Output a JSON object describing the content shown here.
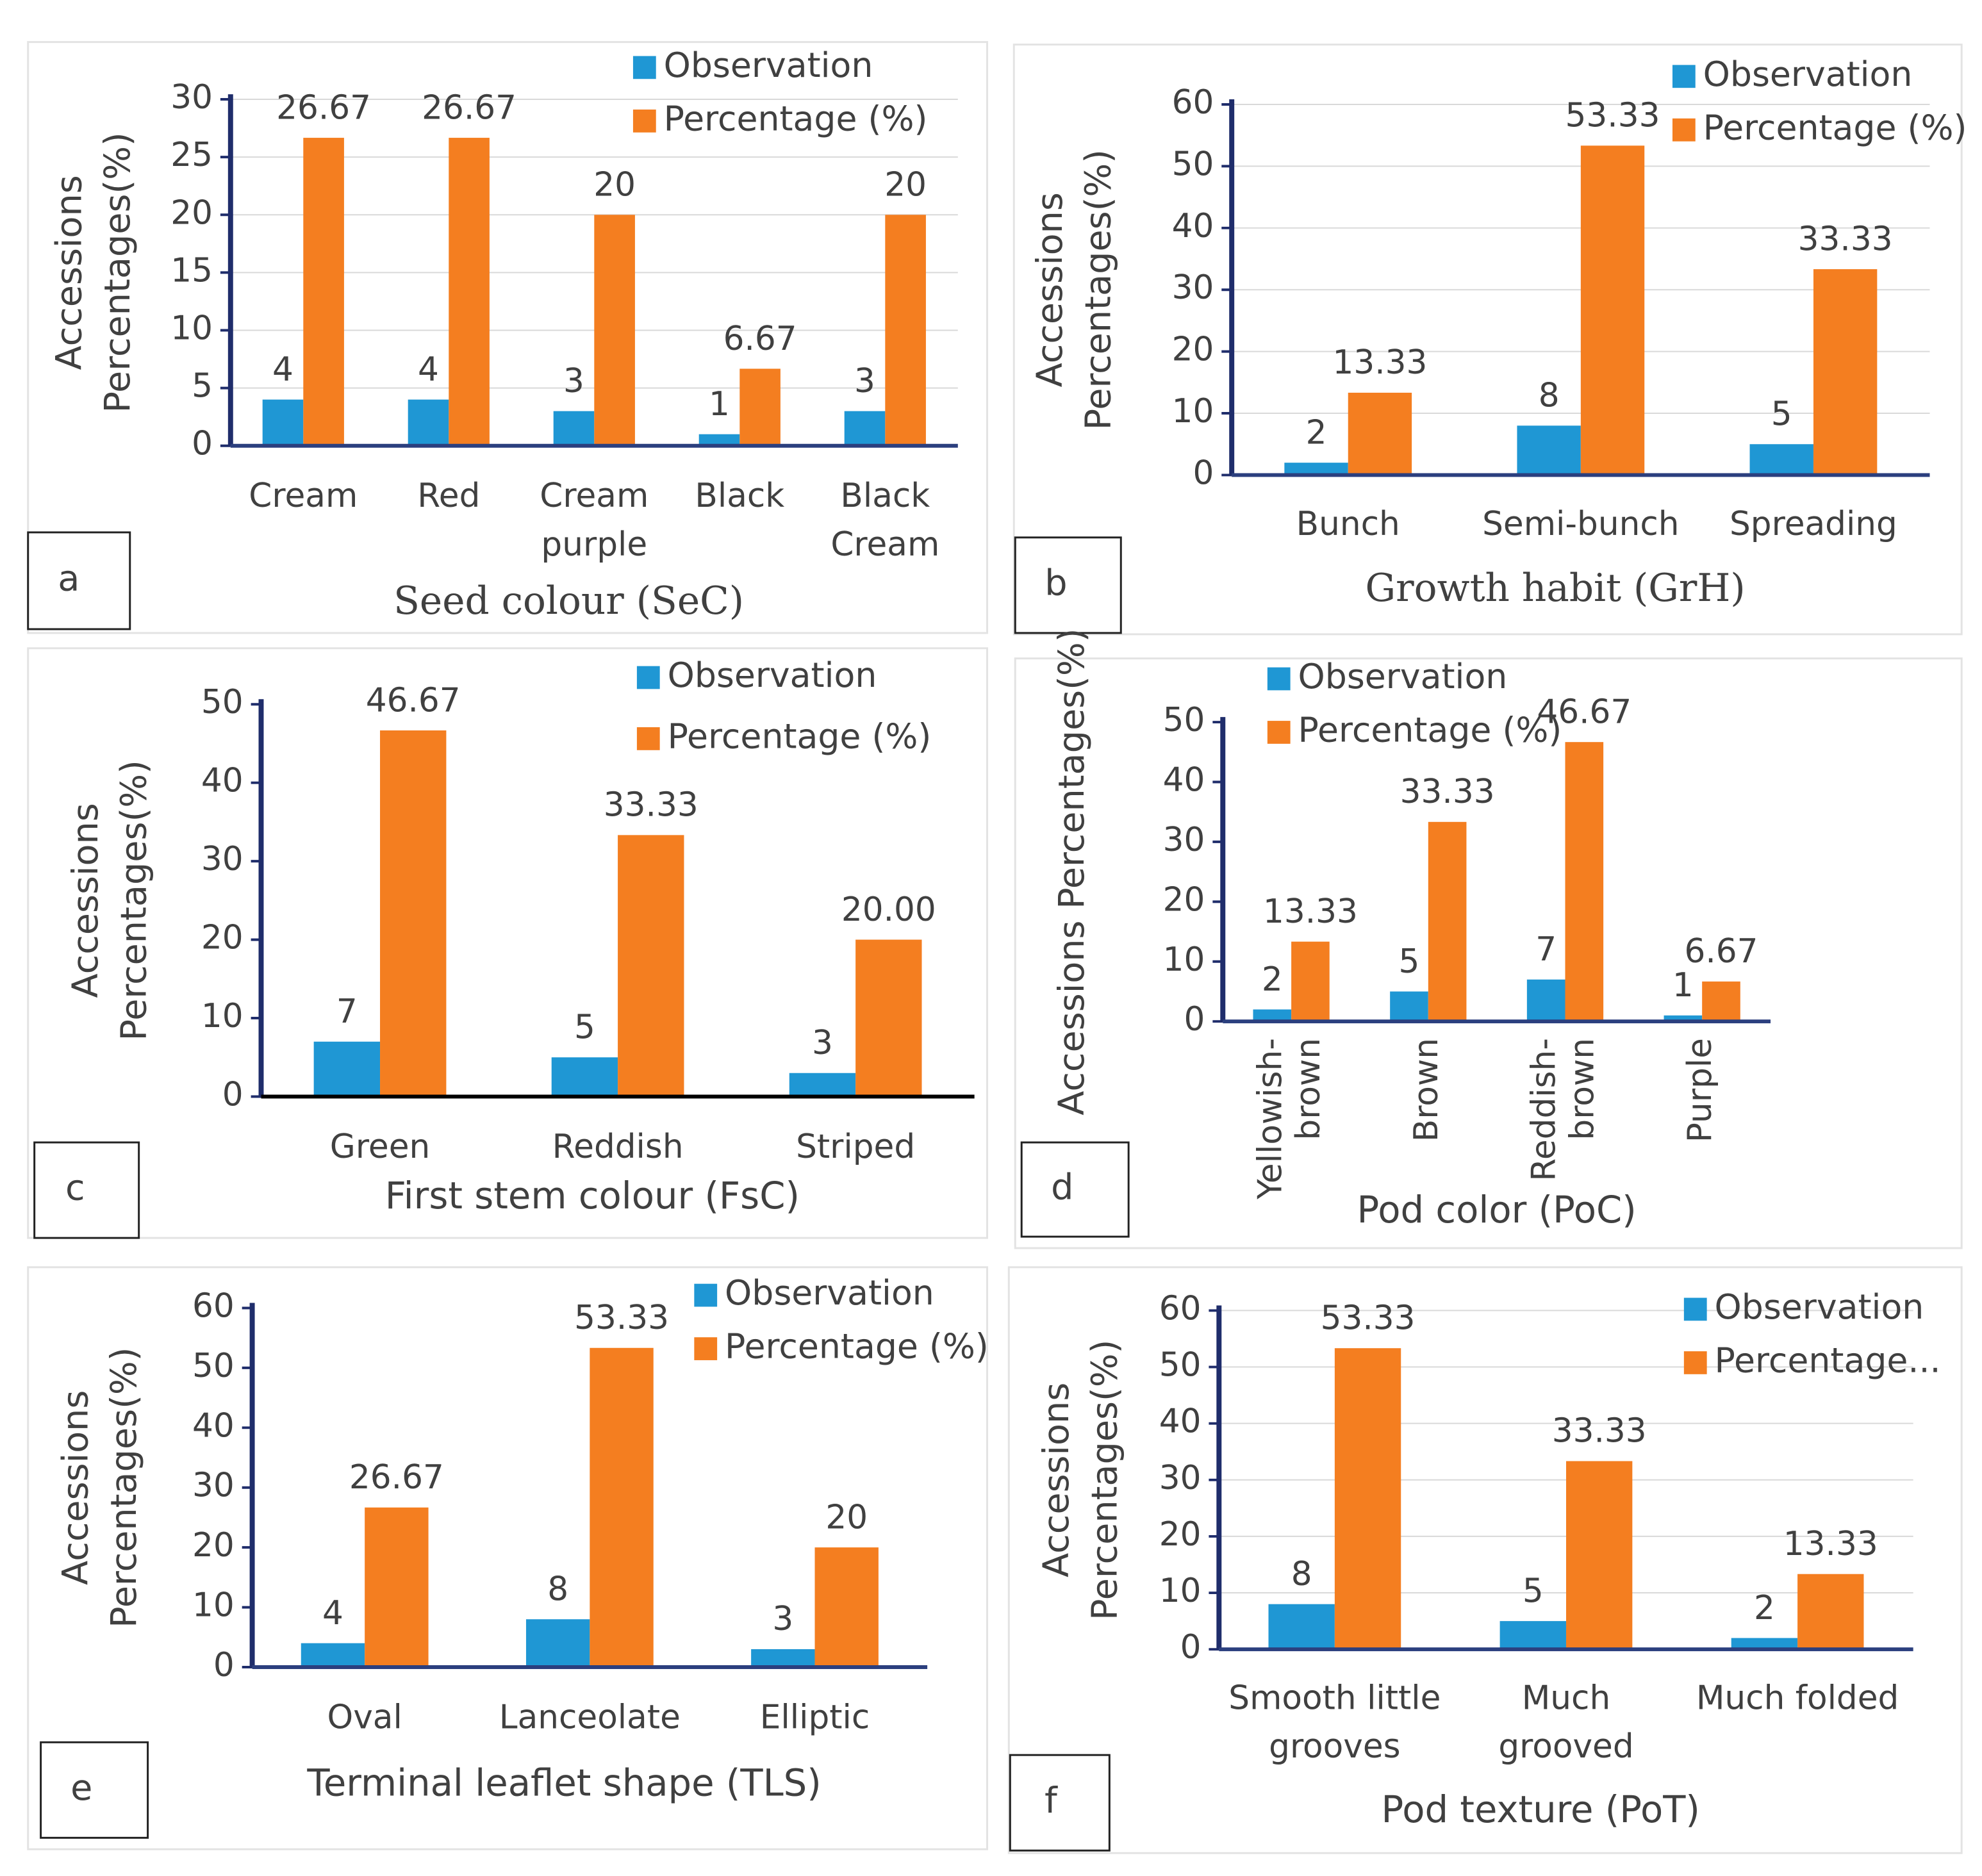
{
  "chart_data": [
    {
      "type": "bar",
      "label": "a",
      "x_title": "Seed colour (SeC)",
      "y_title": "Accessions\nPercentages(%)",
      "categories": [
        "Cream",
        "Red",
        "Cream\npurple",
        "Black",
        "Black\nCream"
      ],
      "series": [
        {
          "name": "Observation",
          "color": "#1f97d4",
          "values": [
            4,
            4,
            3,
            1,
            3
          ]
        },
        {
          "name": "Percentage (%)",
          "color": "#f47e20",
          "values": [
            26.67,
            26.67,
            20,
            6.67,
            20
          ]
        }
      ],
      "ylim": [
        0,
        30
      ],
      "yticks": [
        0,
        5,
        10,
        15,
        20,
        25,
        30
      ],
      "grid": true
    },
    {
      "type": "bar",
      "label": "b",
      "x_title": "Growth habit (GrH)",
      "y_title": "Accessions\nPercentages(%)",
      "categories": [
        "Bunch",
        "Semi-bunch",
        "Spreading"
      ],
      "series": [
        {
          "name": "Observation",
          "color": "#1f97d4",
          "values": [
            2,
            8,
            5
          ]
        },
        {
          "name": "Percentage (%)",
          "color": "#f47e20",
          "values": [
            13.33,
            53.33,
            33.33
          ]
        }
      ],
      "ylim": [
        0,
        60
      ],
      "yticks": [
        0,
        10,
        20,
        30,
        40,
        50,
        60
      ],
      "grid": true
    },
    {
      "type": "bar",
      "label": "c",
      "x_title": "First stem colour (FsC)",
      "y_title": "Accessions\nPercentages(%)",
      "categories": [
        "Green",
        "Reddish",
        "Striped"
      ],
      "series": [
        {
          "name": "Observation",
          "color": "#1f97d4",
          "values": [
            7,
            5,
            3
          ]
        },
        {
          "name": "Percentage (%)",
          "color": "#f47e20",
          "values": [
            46.67,
            33.33,
            20
          ],
          "value_labels": [
            "46.67",
            "33.33",
            "20.00"
          ]
        }
      ],
      "ylim": [
        0,
        50
      ],
      "yticks": [
        0,
        10,
        20,
        30,
        40,
        50
      ],
      "grid": false
    },
    {
      "type": "bar",
      "label": "d",
      "x_title": "Pod color (PoC)",
      "y_title": "Accessions Percentages(%)",
      "categories": [
        "Yellowish-\nbrown",
        "Brown",
        "Reddish-\nbrown",
        "Purple"
      ],
      "series": [
        {
          "name": "Observation",
          "color": "#1f97d4",
          "values": [
            2,
            5,
            7,
            1
          ]
        },
        {
          "name": "Percentage (%)",
          "color": "#f47e20",
          "values": [
            13.33,
            33.33,
            46.67,
            6.67
          ]
        }
      ],
      "ylim": [
        0,
        50
      ],
      "yticks": [
        0,
        10,
        20,
        30,
        40,
        50
      ],
      "grid": false
    },
    {
      "type": "bar",
      "label": "e",
      "x_title": "Terminal leaflet shape (TLS)",
      "y_title": "Accessions\nPercentages(%)",
      "categories": [
        "Oval",
        "Lanceolate",
        "Elliptic"
      ],
      "series": [
        {
          "name": "Observation",
          "color": "#1f97d4",
          "values": [
            4,
            8,
            3
          ]
        },
        {
          "name": "Percentage (%)",
          "color": "#f47e20",
          "values": [
            26.67,
            53.33,
            20
          ]
        }
      ],
      "ylim": [
        0,
        60
      ],
      "yticks": [
        0,
        10,
        20,
        30,
        40,
        50,
        60
      ],
      "grid": false
    },
    {
      "type": "bar",
      "label": "f",
      "x_title": "Pod texture (PoT)",
      "y_title": "Accessions\nPercentages(%)",
      "categories": [
        "Smooth little\ngrooves",
        "Much\ngrooved",
        "Much folded"
      ],
      "series": [
        {
          "name": "Observation",
          "color": "#1f97d4",
          "values": [
            8,
            5,
            2
          ]
        },
        {
          "name": "Percentage...",
          "color": "#f47e20",
          "values": [
            53.33,
            33.33,
            13.33
          ]
        }
      ],
      "ylim": [
        0,
        60
      ],
      "yticks": [
        0,
        10,
        20,
        30,
        40,
        50,
        60
      ],
      "grid": true
    }
  ]
}
